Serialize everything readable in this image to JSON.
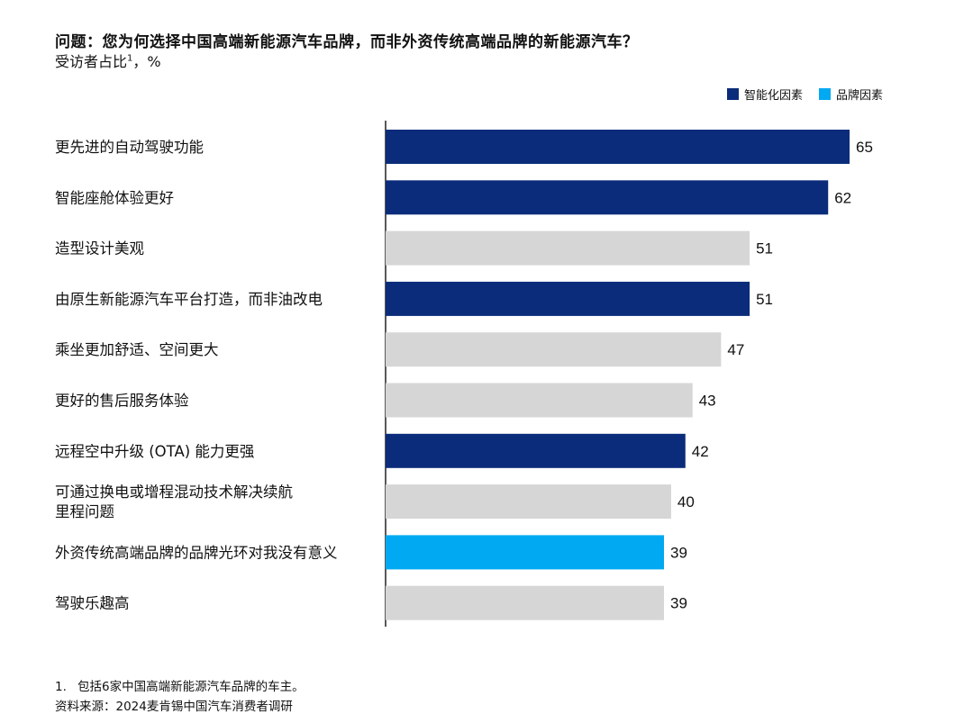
{
  "chart_data": {
    "type": "bar",
    "orientation": "horizontal",
    "title": "问题：您为何选择中国高端新能源汽车品牌，而非外资传统高端品牌的新能源汽车？",
    "subtitle": "受访者占比",
    "subtitle_sup": "1",
    "subtitle_unit": "，%",
    "legend_position": "top-right",
    "legend": [
      {
        "name": "智能化因素",
        "color": "#0b2c7a"
      },
      {
        "name": "品牌因素",
        "color": "#00a9f1"
      }
    ],
    "other_color": "#d6d6d6",
    "xlim": [
      0,
      65
    ],
    "grid": false,
    "categories": [
      [
        "更先进的自动驾驶功能"
      ],
      [
        "智能座舱体验更好"
      ],
      [
        "造型设计美观"
      ],
      [
        "由原生新能源汽车平台打造，而非油改电"
      ],
      [
        "乘坐更加舒适、空间更大"
      ],
      [
        "更好的售后服务体验"
      ],
      [
        "远程空中升级 (OTA) 能力更强"
      ],
      [
        "可通过换电或增程混动技术解决续航",
        "里程问题"
      ],
      [
        "外资传统高端品牌的品牌光环对我没有意义"
      ],
      [
        "驾驶乐趣高"
      ]
    ],
    "values": [
      65,
      62,
      51,
      51,
      47,
      43,
      42,
      40,
      39,
      39
    ],
    "group": [
      "智能化因素",
      "智能化因素",
      "其他",
      "智能化因素",
      "其他",
      "其他",
      "智能化因素",
      "其他",
      "品牌因素",
      "其他"
    ]
  },
  "footnotes": [
    {
      "num": "1.",
      "text": "包括6家中国高端新能源汽车品牌的车主。"
    },
    {
      "num": "",
      "text": "资料来源：2024麦肯锡中国汽车消费者调研"
    }
  ]
}
